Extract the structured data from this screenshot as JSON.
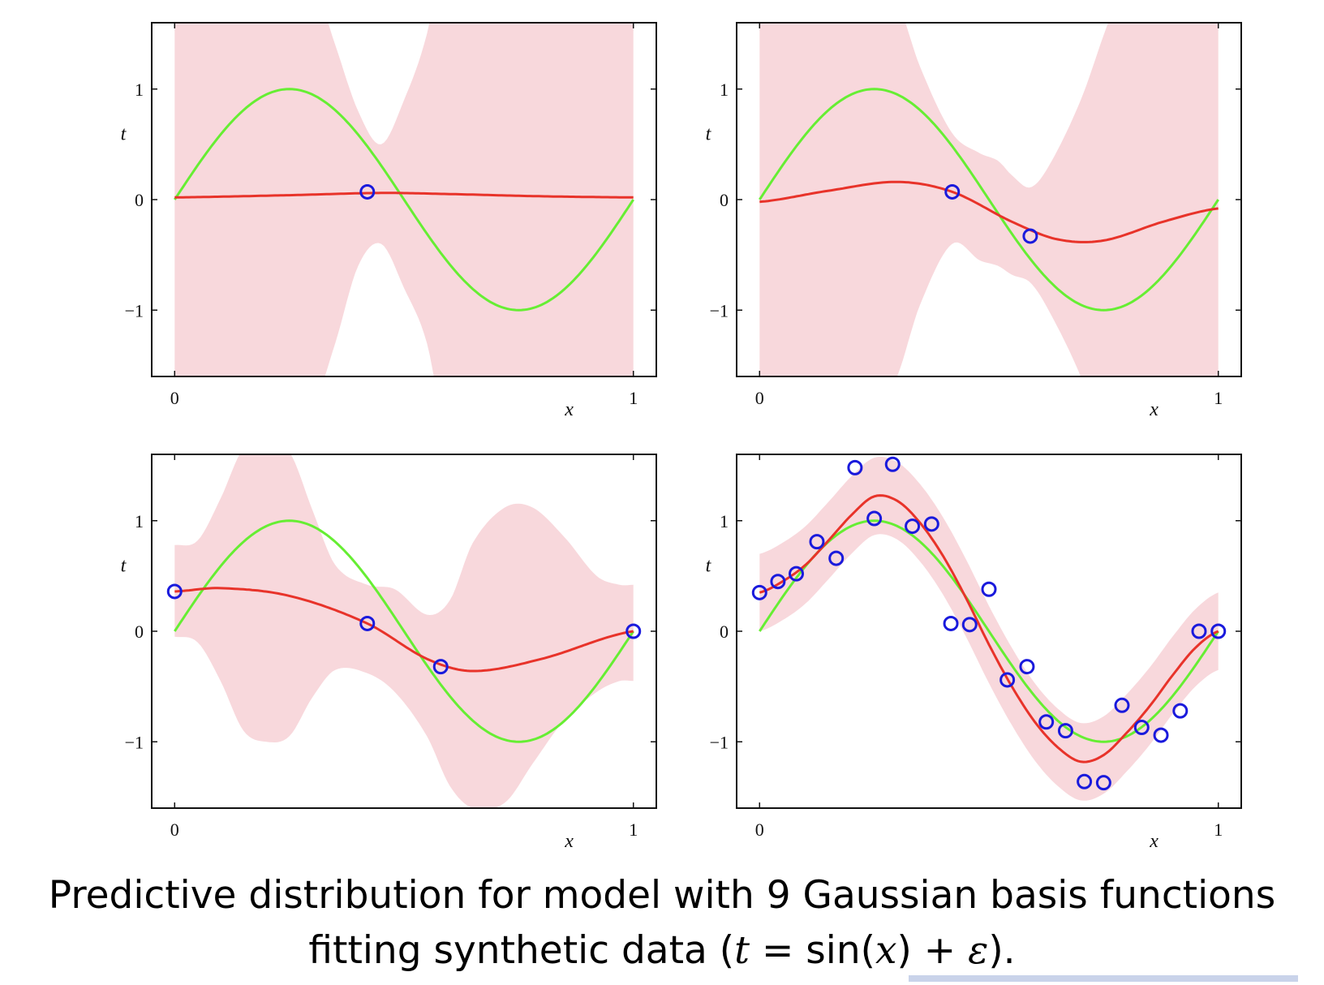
{
  "colors": {
    "band": "#f8d8dc",
    "mean_line": "#e8332a",
    "true_line": "#66ee33",
    "points": "#1a1adc",
    "axis": "#111111"
  },
  "caption": {
    "line1": "Predictive distribution for model with 9 Gaussian basis functions",
    "line2_prefix": "fitting synthetic data (",
    "line2_t": "t",
    "line2_mid1": " = sin(",
    "line2_x": "x",
    "line2_mid2": ") + ",
    "line2_eps": "ε",
    "line2_suffix": ")."
  },
  "chart_data": [
    {
      "type": "line",
      "position": "top-left",
      "xlabel": "x",
      "ylabel": "t",
      "xlim": [
        -0.05,
        1.05
      ],
      "ylim": [
        -1.6,
        1.6
      ],
      "xticks": [
        0,
        1
      ],
      "yticks": [
        -1,
        0,
        1
      ],
      "xtick_labels": [
        "0",
        "1"
      ],
      "ytick_labels": [
        "−1",
        "0",
        "1"
      ],
      "true_function": "sin(2πx)",
      "mean_x": [
        0,
        0.25,
        0.45,
        0.6,
        0.8,
        1.0
      ],
      "mean_y": [
        0.02,
        0.04,
        0.06,
        0.05,
        0.03,
        0.02
      ],
      "band_x": [
        0,
        0.1,
        0.2,
        0.3,
        0.35,
        0.4,
        0.45,
        0.5,
        0.55,
        0.6,
        0.7,
        0.8,
        1.0
      ],
      "band_upper": [
        2.5,
        2.5,
        2.5,
        2.0,
        1.4,
        0.8,
        0.5,
        0.9,
        1.5,
        2.5,
        2.5,
        2.5,
        2.5
      ],
      "band_lower": [
        -2.5,
        -2.5,
        -2.5,
        -1.9,
        -1.3,
        -0.6,
        -0.4,
        -0.8,
        -1.3,
        -2.3,
        -2.5,
        -2.5,
        -2.5
      ],
      "points_x": [
        0.42
      ],
      "points_y": [
        0.07
      ]
    },
    {
      "type": "line",
      "position": "top-right",
      "xlabel": "x",
      "ylabel": "t",
      "xlim": [
        -0.05,
        1.05
      ],
      "ylim": [
        -1.6,
        1.6
      ],
      "xticks": [
        0,
        1
      ],
      "yticks": [
        -1,
        0,
        1
      ],
      "xtick_labels": [
        "0",
        "1"
      ],
      "ytick_labels": [
        "−1",
        "0",
        "1"
      ],
      "true_function": "sin(2πx)",
      "mean_x": [
        0,
        0.15,
        0.3,
        0.42,
        0.55,
        0.65,
        0.75,
        0.88,
        1.0
      ],
      "mean_y": [
        -0.02,
        0.08,
        0.16,
        0.07,
        -0.2,
        -0.36,
        -0.37,
        -0.2,
        -0.08
      ],
      "band_x": [
        0,
        0.1,
        0.2,
        0.3,
        0.35,
        0.42,
        0.48,
        0.52,
        0.55,
        0.59,
        0.63,
        0.7,
        0.76,
        0.85,
        1.0
      ],
      "band_upper": [
        2.5,
        2.5,
        2.5,
        1.8,
        1.2,
        0.6,
        0.42,
        0.35,
        0.22,
        0.11,
        0.3,
        0.9,
        1.6,
        2.5,
        2.5
      ],
      "band_lower": [
        -2.5,
        -2.5,
        -2.5,
        -1.6,
        -0.95,
        -0.4,
        -0.55,
        -0.6,
        -0.68,
        -0.75,
        -1.0,
        -1.6,
        -2.3,
        -2.5,
        -2.5
      ],
      "points_x": [
        0.42,
        0.59
      ],
      "points_y": [
        0.07,
        -0.33
      ]
    },
    {
      "type": "line",
      "position": "bottom-left",
      "xlabel": "x",
      "ylabel": "t",
      "xlim": [
        -0.05,
        1.05
      ],
      "ylim": [
        -1.6,
        1.6
      ],
      "xticks": [
        0,
        1
      ],
      "yticks": [
        -1,
        0,
        1
      ],
      "xtick_labels": [
        "0",
        "1"
      ],
      "ytick_labels": [
        "−1",
        "0",
        "1"
      ],
      "true_function": "sin(2πx)",
      "mean_x": [
        0,
        0.1,
        0.25,
        0.42,
        0.55,
        0.65,
        0.8,
        1.0
      ],
      "mean_y": [
        0.36,
        0.39,
        0.32,
        0.07,
        -0.25,
        -0.36,
        -0.25,
        0.0
      ],
      "band_x": [
        0,
        0.05,
        0.1,
        0.15,
        0.2,
        0.25,
        0.3,
        0.35,
        0.42,
        0.48,
        0.55,
        0.6,
        0.65,
        0.72,
        0.78,
        0.85,
        0.92,
        0.97,
        1.0
      ],
      "band_upper": [
        0.78,
        0.82,
        1.2,
        1.65,
        1.65,
        1.62,
        1.1,
        0.6,
        0.42,
        0.38,
        0.15,
        0.28,
        0.8,
        1.12,
        1.12,
        0.85,
        0.5,
        0.42,
        0.42
      ],
      "band_lower": [
        -0.05,
        -0.1,
        -0.45,
        -0.9,
        -1.0,
        -0.95,
        -0.6,
        -0.35,
        -0.38,
        -0.55,
        -0.95,
        -1.4,
        -1.6,
        -1.55,
        -1.2,
        -0.8,
        -0.55,
        -0.45,
        -0.45
      ],
      "points_x": [
        0,
        0.42,
        0.58,
        1.0
      ],
      "points_y": [
        0.36,
        0.07,
        -0.32,
        0.0
      ]
    },
    {
      "type": "line",
      "position": "bottom-right",
      "xlabel": "x",
      "ylabel": "t",
      "xlim": [
        -0.05,
        1.05
      ],
      "ylim": [
        -1.6,
        1.6
      ],
      "xticks": [
        0,
        1
      ],
      "yticks": [
        -1,
        0,
        1
      ],
      "xtick_labels": [
        "0",
        "1"
      ],
      "ytick_labels": [
        "−1",
        "0",
        "1"
      ],
      "true_function": "sin(2πx)",
      "mean_x": [
        0,
        0.05,
        0.1,
        0.15,
        0.2,
        0.25,
        0.3,
        0.35,
        0.4,
        0.45,
        0.5,
        0.55,
        0.6,
        0.65,
        0.7,
        0.75,
        0.8,
        0.85,
        0.9,
        0.95,
        1.0
      ],
      "mean_y": [
        0.35,
        0.45,
        0.6,
        0.82,
        1.05,
        1.22,
        1.18,
        0.98,
        0.68,
        0.3,
        -0.12,
        -0.5,
        -0.82,
        -1.05,
        -1.18,
        -1.12,
        -0.92,
        -0.68,
        -0.4,
        -0.15,
        0.0
      ],
      "band_halfwidth": 0.35,
      "points_x": [
        0,
        0.04,
        0.08,
        0.125,
        0.167,
        0.208,
        0.25,
        0.29,
        0.333,
        0.375,
        0.417,
        0.458,
        0.5,
        0.54,
        0.583,
        0.625,
        0.667,
        0.708,
        0.75,
        0.79,
        0.833,
        0.875,
        0.917,
        0.958,
        1.0
      ],
      "points_y": [
        0.35,
        0.45,
        0.52,
        0.81,
        0.66,
        1.48,
        1.02,
        1.51,
        0.95,
        0.97,
        0.07,
        0.06,
        0.38,
        -0.44,
        -0.32,
        -0.82,
        -0.9,
        -1.36,
        -1.37,
        -0.67,
        -0.87,
        -0.94,
        -0.72,
        0.0,
        0.0
      ]
    }
  ]
}
